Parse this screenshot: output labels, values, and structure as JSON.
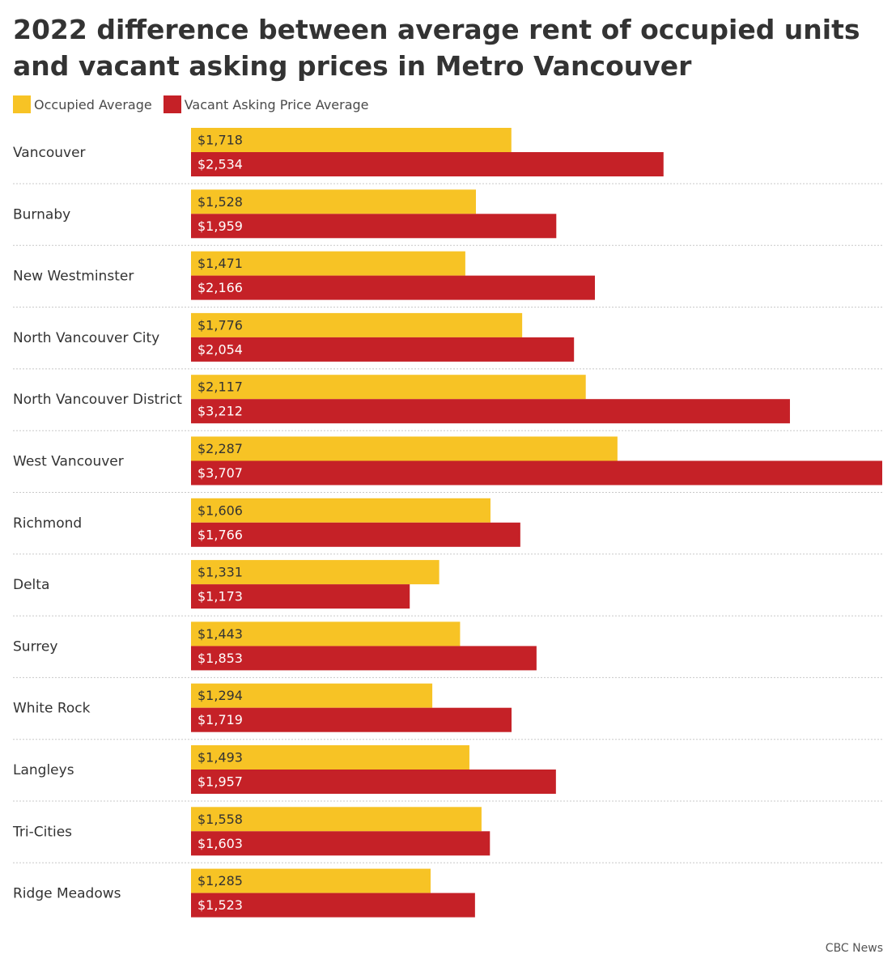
{
  "chart_data": {
    "type": "bar",
    "orientation": "horizontal",
    "title": "2022 difference between average rent of occupied units and vacant asking prices in Metro Vancouver",
    "categories": [
      "Vancouver",
      "Burnaby",
      "New Westminster",
      "North Vancouver City",
      "North Vancouver District",
      "West Vancouver",
      "Richmond",
      "Delta",
      "Surrey",
      "White Rock",
      "Langleys",
      "Tri-Cities",
      "Ridge Meadows"
    ],
    "series": [
      {
        "name": "Occupied Average",
        "color": "#f7c325",
        "values": [
          1718,
          1528,
          1471,
          1776,
          2117,
          2287,
          1606,
          1331,
          1443,
          1294,
          1493,
          1558,
          1285
        ],
        "labels": [
          "$1,718",
          "$1,528",
          "$1,471",
          "$1,776",
          "$2,117",
          "$2,287",
          "$1,606",
          "$1,331",
          "$1,443",
          "$1,294",
          "$1,493",
          "$1,558",
          "$1,285"
        ]
      },
      {
        "name": "Vacant Asking Price Average",
        "color": "#c52127",
        "values": [
          2534,
          1959,
          2166,
          2054,
          3212,
          3707,
          1766,
          1173,
          1853,
          1719,
          1957,
          1603,
          1523
        ],
        "labels": [
          "$2,534",
          "$1,959",
          "$2,166",
          "$2,054",
          "$3,212",
          "$3,707",
          "$1,766",
          "$1,173",
          "$1,853",
          "$1,719",
          "$1,957",
          "$1,603",
          "$1,523"
        ]
      }
    ],
    "xlim": [
      0,
      3707
    ],
    "legend_position": "top-left",
    "grid": false
  },
  "source": "CBC News"
}
